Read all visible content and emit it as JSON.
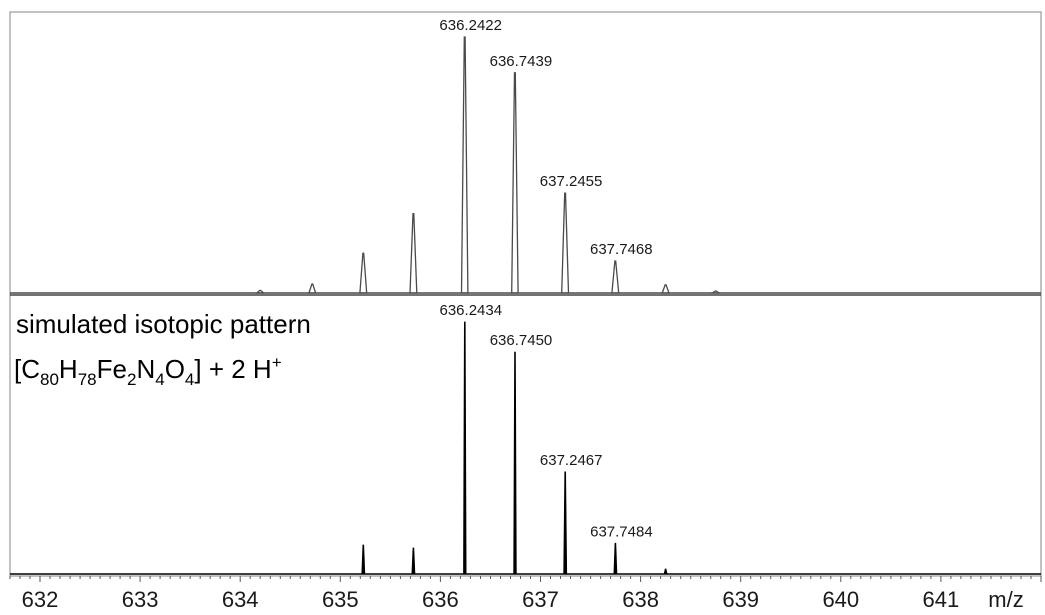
{
  "chart_data": [
    {
      "type": "line",
      "panel": "measured",
      "xlabel": "m/z",
      "xlim": [
        631.7,
        642.0
      ],
      "ylim": [
        0,
        100
      ],
      "grid": false,
      "peaks": [
        {
          "x": 634.2,
          "y": 1
        },
        {
          "x": 634.72,
          "y": 3.5
        },
        {
          "x": 635.23,
          "y": 15.5
        },
        {
          "x": 635.73,
          "y": 31
        },
        {
          "x": 636.2422,
          "y": 100,
          "label": "636.2422"
        },
        {
          "x": 636.7439,
          "y": 86,
          "label": "636.7439"
        },
        {
          "x": 637.2455,
          "y": 39,
          "label": "637.2455"
        },
        {
          "x": 637.7468,
          "y": 12.5,
          "label": "637.7468"
        },
        {
          "x": 638.25,
          "y": 3.2
        },
        {
          "x": 638.75,
          "y": 0.8
        }
      ]
    },
    {
      "type": "line",
      "panel": "simulated",
      "xlabel": "m/z",
      "xlim": [
        631.7,
        642.0
      ],
      "ylim": [
        0,
        100
      ],
      "grid": false,
      "annotation": {
        "line1": "simulated isotopic pattern",
        "formula": [
          {
            "t": "[C",
            "s": "n"
          },
          {
            "t": "80",
            "s": "sub"
          },
          {
            "t": "H",
            "s": "n"
          },
          {
            "t": "78",
            "s": "sub"
          },
          {
            "t": "Fe",
            "s": "n"
          },
          {
            "t": "2",
            "s": "sub"
          },
          {
            "t": "N",
            "s": "n"
          },
          {
            "t": "4",
            "s": "sub"
          },
          {
            "t": "O",
            "s": "n"
          },
          {
            "t": "4",
            "s": "sub"
          },
          {
            "t": "] + 2 H",
            "s": "n"
          },
          {
            "t": "+",
            "s": "sup"
          }
        ]
      },
      "peaks": [
        {
          "x": 635.23,
          "y": 11.5
        },
        {
          "x": 635.73,
          "y": 10.3
        },
        {
          "x": 636.2434,
          "y": 100,
          "label": "636.2434"
        },
        {
          "x": 636.745,
          "y": 88,
          "label": "636.7450"
        },
        {
          "x": 637.2467,
          "y": 40.5,
          "label": "637.2467"
        },
        {
          "x": 637.7484,
          "y": 12.2,
          "label": "637.7484"
        },
        {
          "x": 638.25,
          "y": 2
        }
      ]
    }
  ],
  "x_axis": {
    "ticks": [
      632,
      633,
      634,
      635,
      636,
      637,
      638,
      639,
      640,
      641
    ],
    "tick_labels": [
      "632",
      "633",
      "634",
      "635",
      "636",
      "637",
      "638",
      "639",
      "640",
      "641"
    ],
    "unit_label": "m/z"
  },
  "colors": {
    "measured": "#4a4a4a",
    "simulated": "#000000",
    "frame": "#999999"
  }
}
